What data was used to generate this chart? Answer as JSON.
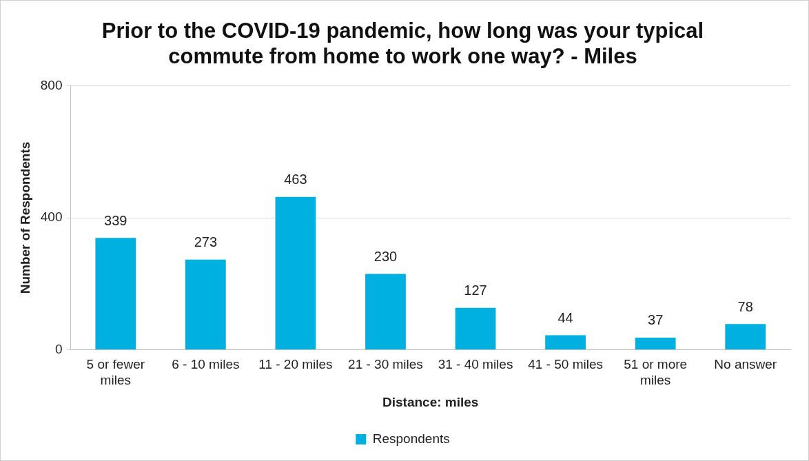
{
  "chart_data": {
    "type": "bar",
    "title": "Prior to the COVID-19 pandemic, how long was your typical commute from home to work one way? - Miles",
    "xlabel": "Distance: miles",
    "ylabel": "Number of Respondents",
    "categories": [
      "5 or fewer miles",
      "6 - 10 miles",
      "11 - 20 miles",
      "21 - 30 miles",
      "31 - 40 miles",
      "41 - 50 miles",
      "51 or more miles",
      "No answer"
    ],
    "series": [
      {
        "name": "Respondents",
        "color": "#00b0e0",
        "values": [
          339,
          273,
          463,
          230,
          127,
          44,
          37,
          78
        ]
      }
    ],
    "ylim": [
      0,
      800
    ],
    "yticks": [
      0,
      400,
      800
    ],
    "grid": "y",
    "legend": "bottom",
    "data_labels": true
  }
}
